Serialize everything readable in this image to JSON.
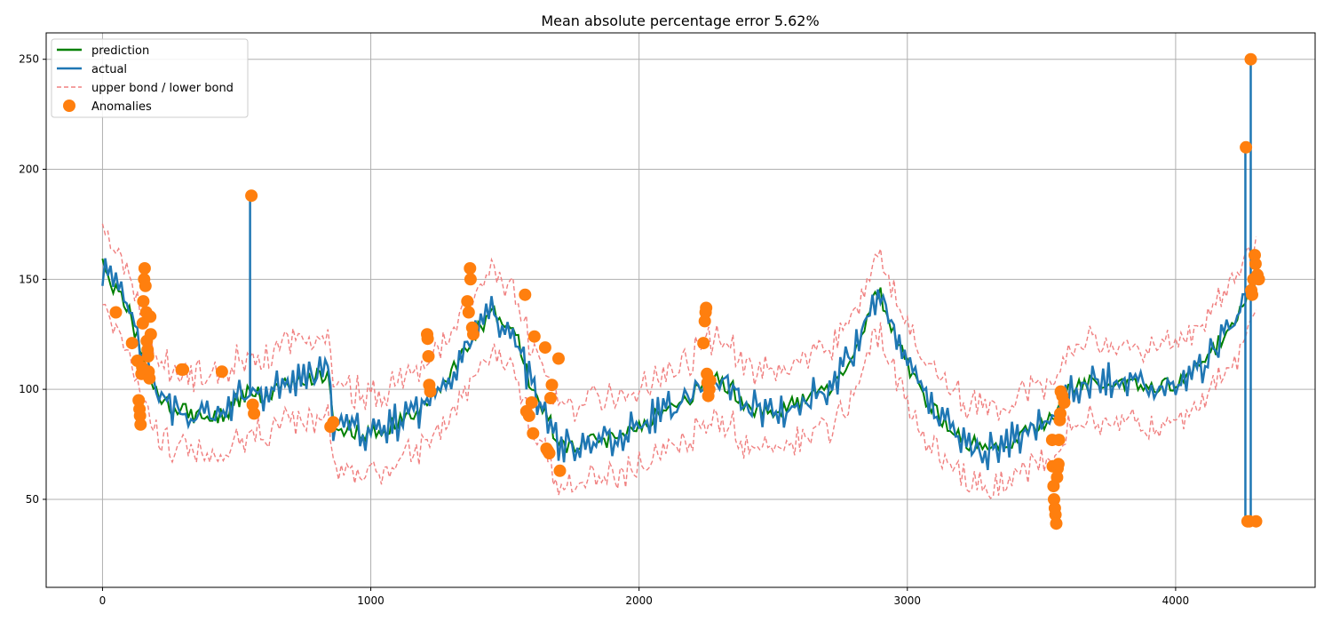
{
  "chart_data": {
    "type": "line",
    "title": "Mean absolute percentage error 5.62%",
    "xlabel": "",
    "ylabel": "",
    "xlim": [
      -210,
      4520
    ],
    "ylim": [
      10,
      262
    ],
    "xticks": [
      0,
      1000,
      2000,
      3000,
      4000
    ],
    "yticks": [
      50,
      100,
      150,
      200,
      250
    ],
    "xtick_labels": [
      "0",
      "1000",
      "2000",
      "3000",
      "4000"
    ],
    "ytick_labels": [
      "50",
      "100",
      "150",
      "200",
      "250"
    ],
    "grid": true,
    "legend_position": "top-left",
    "colors": {
      "prediction": "#008000",
      "actual": "#1f77b4",
      "bonds": "#f08080",
      "anomalies": "#ff7f0e"
    },
    "x_step": 10,
    "key_points": [
      [
        0,
        156
      ],
      [
        50,
        145
      ],
      [
        100,
        135
      ],
      [
        150,
        115
      ],
      [
        200,
        98
      ],
      [
        250,
        92
      ],
      [
        300,
        90
      ],
      [
        350,
        88
      ],
      [
        400,
        87
      ],
      [
        450,
        88
      ],
      [
        500,
        95
      ],
      [
        540,
        98
      ],
      [
        600,
        97
      ],
      [
        650,
        100
      ],
      [
        700,
        103
      ],
      [
        750,
        104
      ],
      [
        800,
        106
      ],
      [
        840,
        108
      ],
      [
        860,
        85
      ],
      [
        900,
        82
      ],
      [
        1000,
        80
      ],
      [
        1100,
        85
      ],
      [
        1200,
        92
      ],
      [
        1250,
        100
      ],
      [
        1300,
        108
      ],
      [
        1350,
        117
      ],
      [
        1400,
        127
      ],
      [
        1450,
        135
      ],
      [
        1500,
        130
      ],
      [
        1550,
        122
      ],
      [
        1600,
        100
      ],
      [
        1650,
        90
      ],
      [
        1700,
        75
      ],
      [
        1800,
        75
      ],
      [
        1900,
        78
      ],
      [
        2000,
        84
      ],
      [
        2100,
        90
      ],
      [
        2200,
        97
      ],
      [
        2250,
        104
      ],
      [
        2300,
        105
      ],
      [
        2350,
        100
      ],
      [
        2400,
        92
      ],
      [
        2500,
        90
      ],
      [
        2600,
        94
      ],
      [
        2700,
        100
      ],
      [
        2800,
        115
      ],
      [
        2870,
        140
      ],
      [
        2900,
        143
      ],
      [
        2950,
        125
      ],
      [
        3000,
        110
      ],
      [
        3100,
        90
      ],
      [
        3200,
        78
      ],
      [
        3300,
        72
      ],
      [
        3400,
        77
      ],
      [
        3500,
        85
      ],
      [
        3550,
        88
      ],
      [
        3600,
        100
      ],
      [
        3700,
        104
      ],
      [
        3800,
        103
      ],
      [
        3900,
        100
      ],
      [
        4000,
        102
      ],
      [
        4100,
        110
      ],
      [
        4200,
        128
      ],
      [
        4250,
        140
      ],
      [
        4300,
        150
      ]
    ],
    "bond_width": 18,
    "series": [
      {
        "name": "prediction",
        "style": "solid",
        "color": "#008000"
      },
      {
        "name": "actual",
        "style": "solid",
        "color": "#1f77b4"
      },
      {
        "name": "upper bond / lower bond",
        "style": "dashed",
        "color": "#f08080"
      },
      {
        "name": "Anomalies",
        "style": "marker",
        "color": "#ff7f0e"
      }
    ],
    "spikes": [
      {
        "x": 550,
        "from": 97,
        "to": 188
      },
      {
        "x": 4260,
        "from": 40,
        "to": 210
      },
      {
        "x": 4280,
        "from": 40,
        "to": 250
      }
    ],
    "anomalies": [
      [
        50,
        135
      ],
      [
        110,
        121
      ],
      [
        130,
        113
      ],
      [
        135,
        95
      ],
      [
        138,
        91
      ],
      [
        140,
        88
      ],
      [
        142,
        84
      ],
      [
        145,
        107
      ],
      [
        148,
        110
      ],
      [
        150,
        130
      ],
      [
        152,
        140
      ],
      [
        155,
        150
      ],
      [
        157,
        155
      ],
      [
        160,
        147
      ],
      [
        163,
        135
      ],
      [
        165,
        122
      ],
      [
        168,
        118
      ],
      [
        170,
        115
      ],
      [
        172,
        108
      ],
      [
        175,
        105
      ],
      [
        178,
        133
      ],
      [
        180,
        125
      ],
      [
        295,
        109
      ],
      [
        300,
        109
      ],
      [
        445,
        108
      ],
      [
        555,
        188
      ],
      [
        560,
        93
      ],
      [
        565,
        89
      ],
      [
        850,
        83
      ],
      [
        860,
        85
      ],
      [
        1210,
        125
      ],
      [
        1212,
        123
      ],
      [
        1215,
        115
      ],
      [
        1218,
        102
      ],
      [
        1222,
        99
      ],
      [
        1360,
        140
      ],
      [
        1365,
        135
      ],
      [
        1370,
        155
      ],
      [
        1372,
        150
      ],
      [
        1378,
        128
      ],
      [
        1382,
        125
      ],
      [
        1575,
        143
      ],
      [
        1580,
        90
      ],
      [
        1590,
        88
      ],
      [
        1600,
        94
      ],
      [
        1605,
        80
      ],
      [
        1610,
        124
      ],
      [
        1650,
        119
      ],
      [
        1655,
        73
      ],
      [
        1660,
        72
      ],
      [
        1665,
        71
      ],
      [
        1670,
        96
      ],
      [
        1675,
        102
      ],
      [
        1700,
        114
      ],
      [
        1705,
        63
      ],
      [
        2240,
        121
      ],
      [
        2245,
        131
      ],
      [
        2248,
        135
      ],
      [
        2250,
        137
      ],
      [
        2253,
        107
      ],
      [
        2255,
        103
      ],
      [
        2258,
        97
      ],
      [
        2262,
        100
      ],
      [
        2265,
        104
      ],
      [
        3540,
        77
      ],
      [
        3542,
        65
      ],
      [
        3545,
        56
      ],
      [
        3547,
        50
      ],
      [
        3550,
        46
      ],
      [
        3552,
        43
      ],
      [
        3555,
        39
      ],
      [
        3558,
        60
      ],
      [
        3560,
        64
      ],
      [
        3563,
        66
      ],
      [
        3565,
        77
      ],
      [
        3568,
        86
      ],
      [
        3570,
        89
      ],
      [
        3572,
        99
      ],
      [
        3578,
        97
      ],
      [
        3585,
        94
      ],
      [
        4262,
        210
      ],
      [
        4268,
        40
      ],
      [
        4275,
        40
      ],
      [
        4280,
        250
      ],
      [
        4282,
        145
      ],
      [
        4285,
        143
      ],
      [
        4290,
        150
      ],
      [
        4295,
        161
      ],
      [
        4298,
        157
      ],
      [
        4300,
        40
      ],
      [
        4305,
        152
      ],
      [
        4310,
        150
      ]
    ]
  },
  "legend": {
    "prediction": "prediction",
    "actual": "actual",
    "bonds": "upper bond / lower bond",
    "anomalies": "Anomalies"
  }
}
